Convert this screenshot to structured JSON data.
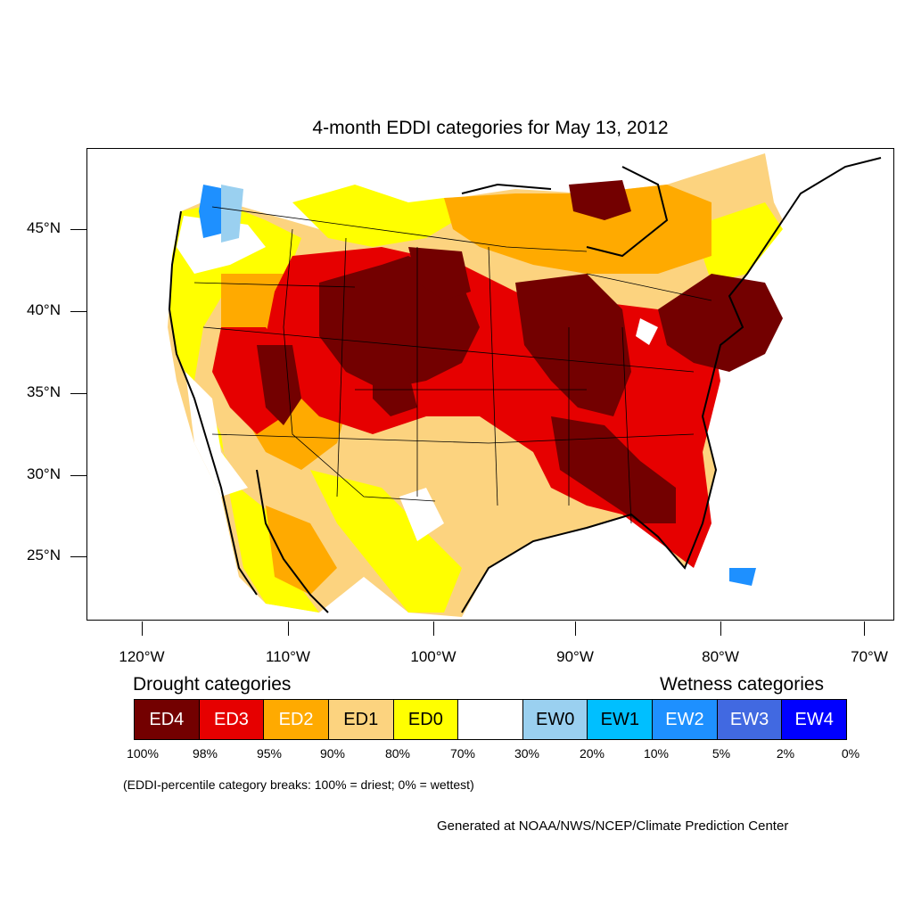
{
  "title": "4-month EDDI categories for May 13, 2012",
  "latitude_labels": [
    "45°N",
    "40°N",
    "35°N",
    "30°N",
    "25°N"
  ],
  "longitude_labels": [
    "120°W",
    "110°W",
    "100°W",
    "90°W",
    "80°W",
    "70°W"
  ],
  "drought_heading": "Drought categories",
  "wetness_heading": "Wetness categories",
  "categories": [
    {
      "label": "ED4",
      "color": "#730000",
      "text_color": "#ffffff"
    },
    {
      "label": "ED3",
      "color": "#e60000",
      "text_color": "#ffffff"
    },
    {
      "label": "ED2",
      "color": "#ffaa00",
      "text_color": "#ffffff"
    },
    {
      "label": "ED1",
      "color": "#fcd37f",
      "text_color": "#000000"
    },
    {
      "label": "ED0",
      "color": "#ffff00",
      "text_color": "#000000"
    },
    {
      "label": "",
      "color": "#ffffff",
      "text_color": "#000000"
    },
    {
      "label": "EW0",
      "color": "#9ad0f0",
      "text_color": "#000000"
    },
    {
      "label": "EW1",
      "color": "#00bfff",
      "text_color": "#000000"
    },
    {
      "label": "EW2",
      "color": "#1e90ff",
      "text_color": "#ffffff"
    },
    {
      "label": "EW3",
      "color": "#4169e1",
      "text_color": "#ffffff"
    },
    {
      "label": "EW4",
      "color": "#0000ff",
      "text_color": "#ffffff"
    }
  ],
  "percentile_breaks": [
    "100%",
    "98%",
    "95%",
    "90%",
    "80%",
    "70%",
    "30%",
    "20%",
    "10%",
    "5%",
    "2%",
    "0%"
  ],
  "note": "(EDDI-percentile category breaks: 100% = driest; 0% = wettest)",
  "credit": "Generated at NOAA/NWS/NCEP/Climate Prediction Center"
}
